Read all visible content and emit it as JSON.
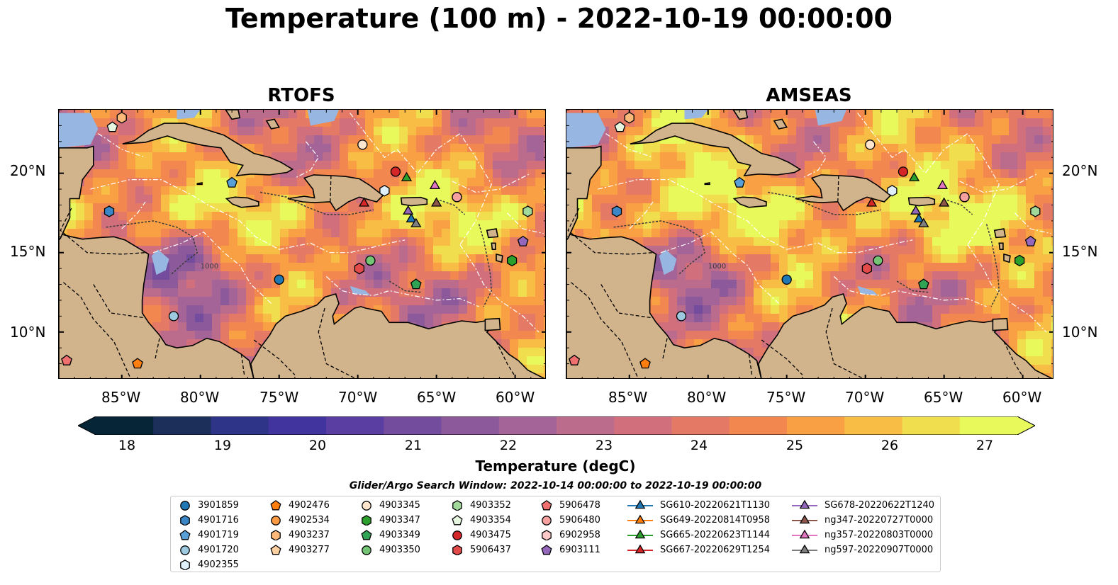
{
  "title": "Temperature (100 m) - 2022-10-19 00:00:00",
  "panels": [
    {
      "title": "RTOFS"
    },
    {
      "title": "AMSEAS"
    }
  ],
  "axes": {
    "lon_labels": [
      "85°W",
      "80°W",
      "75°W",
      "70°W",
      "65°W",
      "60°W"
    ],
    "lat_labels": [
      "20°N",
      "15°N",
      "10°N"
    ],
    "lon_range": [
      -89,
      -58
    ],
    "lat_range": [
      7,
      24
    ]
  },
  "contour_label": "1000",
  "colorbar": {
    "title": "Temperature (degC)",
    "ticks": [
      "18",
      "19",
      "20",
      "21",
      "22",
      "23",
      "24",
      "25",
      "26",
      "27"
    ],
    "range": [
      18,
      27
    ],
    "extend": "both"
  },
  "search_window": "Glider/Argo Search Window: 2022-10-14 00:00:00 to 2022-10-19 00:00:00",
  "colors": {
    "land": "#d2b48c",
    "ocean": "#97b6e1",
    "cmap": [
      "#062537",
      "#1c2f5b",
      "#2e3589",
      "#41349f",
      "#5b3ea2",
      "#744c9e",
      "#8c5a9b",
      "#a46497",
      "#bb6b8c",
      "#d1707c",
      "#e47a66",
      "#f2884f",
      "#f8a043",
      "#f8bd45",
      "#f0de4e",
      "#e8fa5b"
    ]
  },
  "legend": {
    "columns": [
      [
        {
          "label": "3901859",
          "marker": "circle",
          "color": "#1f77b4"
        },
        {
          "label": "4901716",
          "marker": "hexagon",
          "color": "#3a86c6"
        },
        {
          "label": "4901719",
          "marker": "pentagon",
          "color": "#5aa0d8"
        },
        {
          "label": "4901720",
          "marker": "circle",
          "color": "#9ecae1"
        },
        {
          "label": "4902355",
          "marker": "hexagon",
          "color": "#e0f0fa"
        }
      ],
      [
        {
          "label": "4902476",
          "marker": "pentagon",
          "color": "#ff7f0e"
        },
        {
          "label": "4902534",
          "marker": "circle",
          "color": "#fd9a44"
        },
        {
          "label": "4903237",
          "marker": "hexagon",
          "color": "#fdb97a"
        },
        {
          "label": "4903277",
          "marker": "pentagon",
          "color": "#fdd0a2"
        }
      ],
      [
        {
          "label": "4903345",
          "marker": "circle",
          "color": "#fee6ce"
        },
        {
          "label": "4903347",
          "marker": "hexagon",
          "color": "#2ca02c"
        },
        {
          "label": "4903349",
          "marker": "pentagon",
          "color": "#31a354"
        },
        {
          "label": "4903350",
          "marker": "circle",
          "color": "#74c476"
        }
      ],
      [
        {
          "label": "4903352",
          "marker": "hexagon",
          "color": "#a1d99b"
        },
        {
          "label": "4903354",
          "marker": "pentagon",
          "color": "#e5f5e0"
        },
        {
          "label": "4903475",
          "marker": "circle",
          "color": "#d62728"
        },
        {
          "label": "5906437",
          "marker": "hexagon",
          "color": "#e34a4a"
        }
      ],
      [
        {
          "label": "5906478",
          "marker": "pentagon",
          "color": "#f07070"
        },
        {
          "label": "5906480",
          "marker": "circle",
          "color": "#f7a0a0"
        },
        {
          "label": "6902958",
          "marker": "hexagon",
          "color": "#fcc8c8"
        },
        {
          "label": "6903111",
          "marker": "pentagon",
          "color": "#9467bd"
        }
      ],
      [
        {
          "label": "SG610-20220621T1130",
          "marker": "triangle",
          "color": "#1f77b4"
        },
        {
          "label": "SG649-20220814T0958",
          "marker": "triangle",
          "color": "#ff7f0e"
        },
        {
          "label": "SG665-20220623T1144",
          "marker": "triangle",
          "color": "#2ca02c"
        },
        {
          "label": "SG667-20220629T1254",
          "marker": "triangle",
          "color": "#d62728"
        }
      ],
      [
        {
          "label": "SG678-20220622T1240",
          "marker": "triangle",
          "color": "#9467bd"
        },
        {
          "label": "ng347-20220727T0000",
          "marker": "triangle",
          "color": "#8c564b"
        },
        {
          "label": "ng357-20220803T0000",
          "marker": "triangle",
          "color": "#e377c2"
        },
        {
          "label": "ng597-20220907T0000",
          "marker": "triangle",
          "color": "#7f7f7f"
        }
      ]
    ]
  },
  "markers": [
    {
      "label": "3901859",
      "lon": -75.0,
      "lat": 13.3
    },
    {
      "label": "4901716",
      "lon": -85.8,
      "lat": 17.6
    },
    {
      "label": "4901719",
      "lon": -78.0,
      "lat": 19.4
    },
    {
      "label": "4901720",
      "lon": -81.7,
      "lat": 11.0
    },
    {
      "label": "4902355",
      "lon": -68.3,
      "lat": 18.9
    },
    {
      "label": "4902476",
      "lon": -84.0,
      "lat": 8.0
    },
    {
      "label": "4902534",
      "lon": -63.7,
      "lat": 18.5
    },
    {
      "label": "4903237",
      "lon": -85.0,
      "lat": 23.5
    },
    {
      "label": "4903277",
      "lon": -88.5,
      "lat": 8.2
    },
    {
      "label": "4903345",
      "lon": -69.7,
      "lat": 21.8
    },
    {
      "label": "4903347",
      "lon": -60.2,
      "lat": 14.5
    },
    {
      "label": "4903349",
      "lon": -66.3,
      "lat": 13.0
    },
    {
      "label": "4903350",
      "lon": -69.2,
      "lat": 14.5
    },
    {
      "label": "4903352",
      "lon": -59.2,
      "lat": 17.6
    },
    {
      "label": "4903354",
      "lon": -85.6,
      "lat": 22.9
    },
    {
      "label": "4903475",
      "lon": -67.6,
      "lat": 20.1
    },
    {
      "label": "5906437",
      "lon": -69.9,
      "lat": 14.0
    },
    {
      "label": "5906478",
      "lon": -88.5,
      "lat": 8.2
    },
    {
      "label": "5906480",
      "lon": -63.7,
      "lat": 18.5
    },
    {
      "label": "6903111",
      "lon": -59.5,
      "lat": 15.7
    },
    {
      "label": "SG610-20220621T1130",
      "lon": -66.6,
      "lat": 17.1
    },
    {
      "label": "SG665-20220623T1144",
      "lon": -66.9,
      "lat": 19.7
    },
    {
      "label": "SG667-20220629T1254",
      "lon": -69.6,
      "lat": 18.1
    },
    {
      "label": "SG678-20220622T1240",
      "lon": -66.8,
      "lat": 17.6
    },
    {
      "label": "ng347-20220727T0000",
      "lon": -65.0,
      "lat": 18.1
    },
    {
      "label": "ng357-20220803T0000",
      "lon": -65.1,
      "lat": 19.2
    },
    {
      "label": "ng597-20220907T0000",
      "lon": -66.3,
      "lat": 16.8
    }
  ]
}
